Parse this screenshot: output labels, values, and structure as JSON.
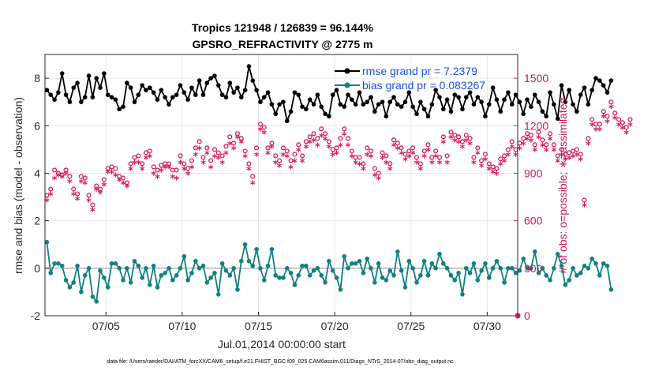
{
  "chart_data": {
    "type": "line",
    "title_line1": "Tropics 121948 / 126839 = 96.144%",
    "title_line2": "GPSRO_REFRACTIVITY @ 2775 m",
    "ylabel_left": "rmse and bias (model - observation)",
    "ylabel_right": "# of obs: o=possible; ∗=assimilated",
    "xlabel": "Jul.01,2014 00:00:00 start",
    "footnote": "data file: /Users/raeder/DAI/ATM_forcXX/CAM6_setup/f.e21.FHIST_BGC.f09_025.CAM6assim.011/Diags_NTrS_2014-07/obs_diag_output.nc",
    "x_ticks": [
      5,
      10,
      15,
      20,
      25,
      30
    ],
    "x_tick_labels": [
      "07/05",
      "07/10",
      "07/15",
      "07/20",
      "07/25",
      "07/30"
    ],
    "xlim": [
      1,
      32
    ],
    "ylim_left": [
      -2,
      9
    ],
    "y_ticks_left": [
      -2,
      0,
      2,
      4,
      6,
      8
    ],
    "ylim_right": [
      0,
      1650
    ],
    "y_ticks_right": [
      0,
      300,
      600,
      900,
      1200,
      1500
    ],
    "colors": {
      "rmse": "#000000",
      "bias": "#118080",
      "obs": "#d6185c",
      "zero_line": "#c8c8c8",
      "legend_text": "#1a4fe0"
    },
    "legend": [
      {
        "label": "rmse grand pr = 7.2379",
        "color": "#000000"
      },
      {
        "label": "bias grand pr = 0.083267",
        "color": "#118080"
      }
    ],
    "series": {
      "rmse": {
        "name": "rmse",
        "x_start": 1.125,
        "x_step": 0.25,
        "values": [
          7.5,
          7.3,
          7.1,
          7.4,
          8.2,
          7.3,
          7.0,
          7.6,
          7.8,
          7.0,
          7.2,
          8.1,
          7.2,
          8.0,
          7.6,
          8.2,
          7.3,
          7.2,
          7.1,
          6.7,
          6.8,
          7.8,
          7.6,
          7.0,
          7.3,
          7.7,
          7.5,
          7.6,
          7.4,
          7.1,
          7.5,
          7.2,
          6.9,
          7.2,
          7.3,
          7.7,
          7.4,
          7.1,
          7.6,
          7.3,
          7.9,
          7.3,
          7.8,
          8.0,
          8.1,
          7.7,
          7.3,
          7.2,
          7.8,
          7.4,
          7.6,
          7.2,
          7.5,
          8.5,
          7.9,
          7.5,
          7.0,
          7.2,
          7.4,
          6.9,
          6.5,
          6.9,
          7.0,
          6.2,
          6.6,
          7.4,
          7.3,
          6.8,
          6.7,
          7.1,
          6.9,
          7.3,
          6.8,
          6.5,
          6.4,
          7.3,
          7.5,
          6.9,
          6.8,
          7.3,
          7.1,
          6.9,
          7.4,
          6.9,
          7.0,
          7.2,
          6.6,
          6.9,
          7.0,
          6.4,
          7.0,
          7.2,
          6.9,
          6.8,
          7.0,
          7.4,
          6.8,
          6.5,
          7.0,
          6.7,
          6.4,
          6.9,
          7.5,
          7.2,
          6.7,
          7.1,
          6.6,
          7.3,
          7.2,
          6.7,
          7.2,
          7.4,
          6.9,
          7.2,
          7.0,
          6.4,
          6.9,
          7.6,
          7.1,
          6.6,
          7.1,
          7.4,
          6.9,
          7.3,
          7.0,
          6.5,
          7.1,
          6.8,
          7.3,
          7.0,
          6.6,
          6.4,
          7.4,
          6.9,
          6.3,
          7.7,
          7.0,
          7.5,
          6.9,
          6.6,
          7.3,
          7.6,
          6.9,
          7.5,
          8.0,
          7.9,
          7.7,
          7.4,
          7.9
        ]
      },
      "bias": {
        "name": "bias",
        "x_start": 1.125,
        "x_step": 0.25,
        "values": [
          1.1,
          -0.2,
          0.2,
          0.2,
          0.1,
          -0.5,
          -0.8,
          -0.6,
          0.1,
          -1.0,
          -0.3,
          0.0,
          -1.2,
          -1.4,
          -0.1,
          -0.4,
          -0.8,
          0.2,
          0.2,
          0.0,
          -0.5,
          0.0,
          -0.6,
          0.3,
          0.1,
          -0.4,
          0.0,
          -0.7,
          0.1,
          -0.8,
          -0.3,
          -0.2,
          0.0,
          -0.5,
          -0.3,
          0.0,
          0.5,
          -0.5,
          -0.2,
          0.3,
          0.0,
          0.1,
          -0.6,
          -0.4,
          -0.2,
          -1.1,
          0.2,
          -0.1,
          -0.3,
          0.0,
          -0.9,
          0.3,
          1.0,
          0.3,
          0.1,
          0.8,
          0.0,
          -0.5,
          0.1,
          0.8,
          -0.3,
          -0.4,
          -0.4,
          0.0,
          -0.2,
          -0.7,
          -0.3,
          0.1,
          0.1,
          -0.3,
          -0.1,
          0.0,
          -0.3,
          -0.6,
          0.3,
          -0.1,
          -0.4,
          -0.9,
          0.5,
          0.0,
          0.2,
          0.2,
          0.3,
          -0.2,
          0.4,
          0.0,
          -0.6,
          0.2,
          -0.4,
          -0.5,
          -0.1,
          -0.3,
          0.7,
          -0.1,
          -0.8,
          0.3,
          0.0,
          -0.6,
          -0.3,
          0.3,
          -0.3,
          0.2,
          0.0,
          0.6,
          0.2,
          0.0,
          -0.3,
          -0.5,
          -0.2,
          -1.1,
          0.0,
          -0.2,
          0.2,
          -0.5,
          -0.1,
          0.2,
          -0.4,
          0.0,
          0.3,
          0.0,
          -0.6,
          0.0,
          0.0,
          -0.2,
          -0.1,
          0.4,
          0.0,
          0.0,
          0.7,
          -0.2,
          0.0,
          -0.3,
          -0.5,
          0.0,
          0.6,
          0.1,
          -0.7,
          -0.5,
          0.0,
          -0.3,
          -0.2,
          0.1,
          0.0,
          0.4,
          0.2,
          -0.3,
          0.2,
          0.1,
          -0.9
        ]
      },
      "obs_possible": {
        "name": "possible",
        "x_start": 1.125,
        "x_step": 0.25,
        "values": [
          760,
          800,
          920,
          900,
          890,
          920,
          880,
          800,
          770,
          880,
          870,
          760,
          700,
          820,
          800,
          860,
          930,
          940,
          930,
          880,
          870,
          840,
          960,
          1000,
          1010,
          960,
          1030,
          1040,
          940,
          920,
          950,
          960,
          960,
          920,
          920,
          1010,
          960,
          930,
          980,
          1060,
          1100,
          1000,
          1060,
          980,
          1050,
          1030,
          1010,
          1070,
          1130,
          1090,
          1150,
          1120,
          1040,
          960,
          880,
          1060,
          1210,
          1190,
          1060,
          1090,
          1010,
          980,
          1060,
          1040,
          980,
          1020,
          1080,
          1010,
          1100,
          1130,
          1150,
          1120,
          1180,
          1150,
          1100,
          1050,
          1060,
          1120,
          1180,
          1120,
          1040,
          1000,
          1000,
          960,
          1060,
          1040,
          930,
          900,
          1030,
          1010,
          960,
          1110,
          1090,
          1060,
          1020,
          1040,
          1060,
          1000,
          960,
          1040,
          1080,
          1000,
          1040,
          1000,
          1130,
          1010,
          1160,
          1140,
          1130,
          1100,
          1140,
          1120,
          1000,
          1060,
          980,
          1020,
          960,
          940,
          930,
          990,
          1010,
          1050,
          1100,
          1050,
          1090,
          1120,
          1150,
          1140,
          1080,
          1160,
          1110,
          1080,
          1150,
          1080,
          1010,
          1050,
          1020,
          1030,
          1040,
          1050,
          1020,
          730,
          1120,
          1240,
          1210,
          1210,
          1290,
          1260,
          1350,
          1280,
          1240,
          1220,
          1190,
          1240
        ]
      },
      "obs_assimilated": {
        "name": "assimilated",
        "x_start": 1.125,
        "x_step": 0.25,
        "values": [
          720,
          760,
          860,
          880,
          870,
          890,
          840,
          760,
          730,
          840,
          830,
          720,
          660,
          790,
          770,
          820,
          900,
          900,
          880,
          850,
          830,
          810,
          920,
          960,
          960,
          920,
          990,
          1000,
          890,
          870,
          910,
          930,
          930,
          870,
          860,
          960,
          920,
          890,
          930,
          1010,
          1050,
          960,
          1020,
          930,
          1000,
          990,
          960,
          1020,
          1080,
          1050,
          1120,
          1090,
          1000,
          920,
          830,
          1010,
          1170,
          1150,
          1020,
          1060,
          960,
          940,
          1010,
          1000,
          930,
          970,
          1040,
          970,
          1060,
          1090,
          1100,
          1070,
          1130,
          1110,
          1060,
          1010,
          1020,
          1070,
          1140,
          1070,
          1000,
          960,
          950,
          920,
          1010,
          1000,
          880,
          860,
          990,
          960,
          920,
          1070,
          1050,
          1020,
          980,
          1000,
          1020,
          960,
          920,
          1000,
          1040,
          960,
          1000,
          960,
          1090,
          960,
          1120,
          1100,
          1090,
          1060,
          1100,
          1080,
          960,
          1020,
          940,
          980,
          920,
          900,
          890,
          950,
          970,
          1010,
          1060,
          1010,
          1050,
          1080,
          1110,
          1100,
          1040,
          1120,
          1070,
          1040,
          1110,
          1040,
          970,
          1010,
          980,
          990,
          1000,
          1010,
          980,
          690,
          1080,
          1200,
          1170,
          1170,
          1250,
          1220,
          1310,
          1240,
          1200,
          1180,
          1150,
          1200
        ]
      }
    }
  }
}
